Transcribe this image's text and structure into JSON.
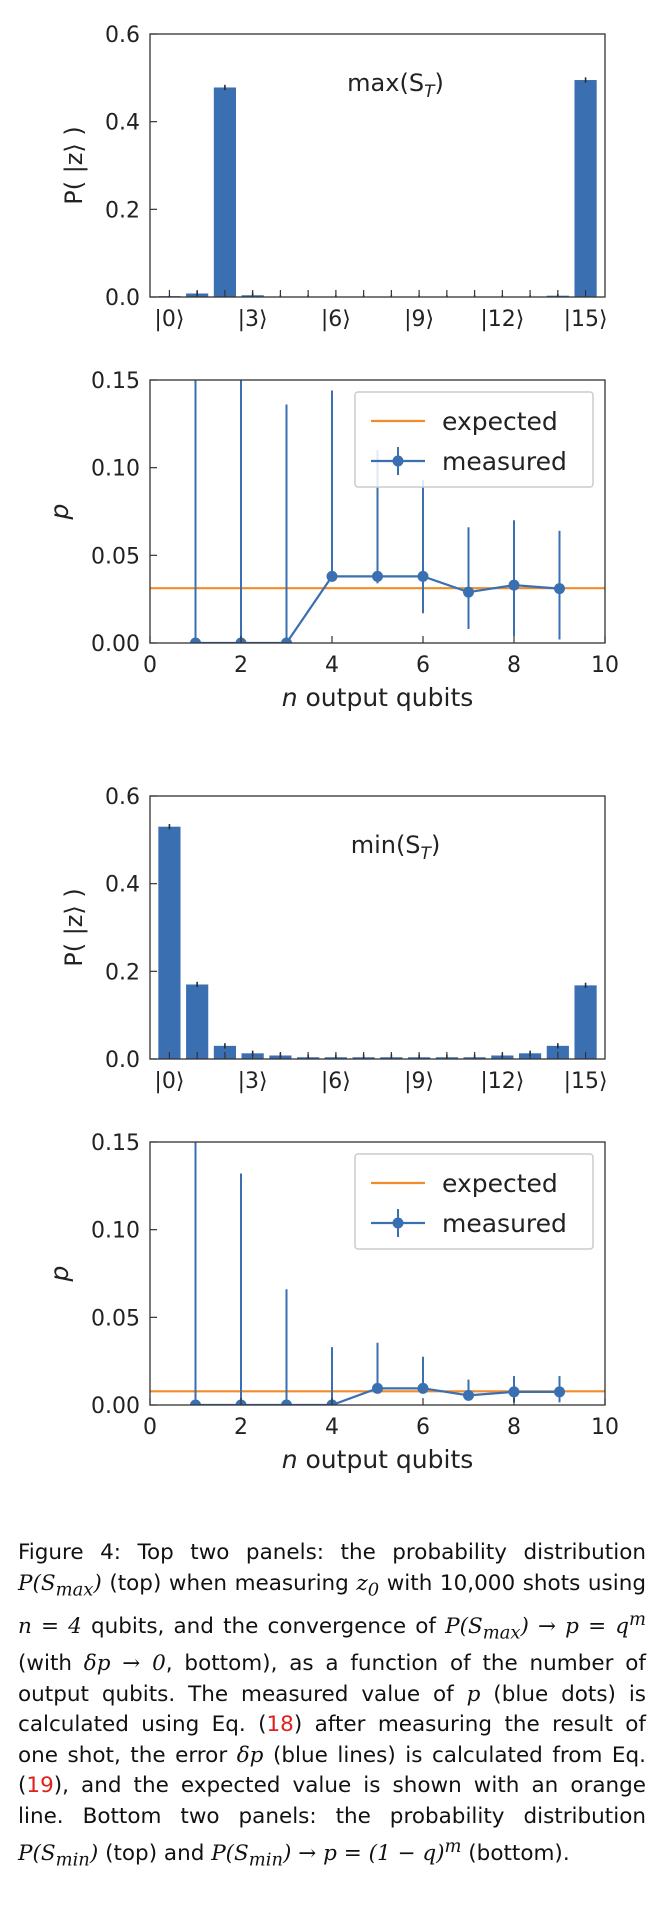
{
  "chart_data": [
    {
      "type": "bar",
      "annotation": "max(S",
      "annotation_sub": "T",
      "annotation_close": ")",
      "ylabel": "P( |z⟩ )",
      "ylim": [
        0,
        0.6
      ],
      "yticks": [
        "0.0",
        "0.2",
        "0.4",
        "0.6"
      ],
      "ytick_values": [
        0,
        0.2,
        0.4,
        0.6
      ],
      "xticks": [
        "|0⟩",
        "|3⟩",
        "|6⟩",
        "|9⟩",
        "|12⟩",
        "|15⟩"
      ],
      "xtick_positions": [
        0,
        3,
        6,
        9,
        12,
        15
      ],
      "categories": [
        0,
        1,
        2,
        3,
        4,
        5,
        6,
        7,
        8,
        9,
        10,
        11,
        12,
        13,
        14,
        15
      ],
      "values": [
        0.002,
        0.008,
        0.478,
        0.004,
        0.001,
        0.001,
        0.001,
        0.001,
        0.001,
        0.001,
        0.001,
        0.001,
        0.001,
        0.001,
        0.003,
        0.495
      ],
      "errors": [
        0.001,
        0.006,
        0.006,
        0.006,
        0.003,
        0.003,
        0.003,
        0.003,
        0.003,
        0.003,
        0.003,
        0.003,
        0.003,
        0.003,
        0.004,
        0.006
      ],
      "color": "#3a70b2"
    },
    {
      "type": "line",
      "xlabel": "n",
      "xlabel_rest": " output qubits",
      "ylabel": "p",
      "xlim": [
        0,
        10
      ],
      "ylim": [
        0,
        0.15
      ],
      "xticks": [
        "0",
        "2",
        "4",
        "6",
        "8",
        "10"
      ],
      "xtick_values": [
        0,
        2,
        4,
        6,
        8,
        10
      ],
      "yticks": [
        "0.00",
        "0.05",
        "0.10",
        "0.15"
      ],
      "ytick_values": [
        0,
        0.05,
        0.1,
        0.15
      ],
      "x": [
        1,
        2,
        3,
        4,
        5,
        6,
        7,
        8,
        9
      ],
      "series": [
        {
          "name": "measured",
          "values": [
            0,
            0,
            0,
            0.038,
            0.038,
            0.038,
            0.029,
            0.033,
            0.031
          ],
          "err_up": [
            0.16,
            0.16,
            0.136,
            0.106,
            0.072,
            0.055,
            0.037,
            0.037,
            0.033
          ],
          "err_low": [
            0,
            0,
            0,
            0,
            0.004,
            0.021,
            0.021,
            0.029,
            0.029
          ],
          "color": "#3a70b2"
        },
        {
          "name": "expected",
          "constant": 0.03125,
          "color": "#f28c28"
        }
      ],
      "legend": "top-right"
    },
    {
      "type": "bar",
      "annotation": "min(S",
      "annotation_sub": "T",
      "annotation_close": ")",
      "ylabel": "P( |z⟩ )",
      "ylim": [
        0,
        0.6
      ],
      "yticks": [
        "0.0",
        "0.2",
        "0.4",
        "0.6"
      ],
      "ytick_values": [
        0,
        0.2,
        0.4,
        0.6
      ],
      "xticks": [
        "|0⟩",
        "|3⟩",
        "|6⟩",
        "|9⟩",
        "|12⟩",
        "|15⟩"
      ],
      "xtick_positions": [
        0,
        3,
        6,
        9,
        12,
        15
      ],
      "categories": [
        0,
        1,
        2,
        3,
        4,
        5,
        6,
        7,
        8,
        9,
        10,
        11,
        12,
        13,
        14,
        15
      ],
      "values": [
        0.53,
        0.17,
        0.03,
        0.013,
        0.008,
        0.004,
        0.004,
        0.004,
        0.004,
        0.004,
        0.004,
        0.004,
        0.008,
        0.013,
        0.03,
        0.168
      ],
      "errors": [
        0.006,
        0.006,
        0.006,
        0.006,
        0.006,
        0.006,
        0.006,
        0.006,
        0.006,
        0.006,
        0.006,
        0.006,
        0.006,
        0.006,
        0.006,
        0.006
      ],
      "color": "#3a70b2"
    },
    {
      "type": "line",
      "xlabel": "n",
      "xlabel_rest": " output qubits",
      "ylabel": "p",
      "xlim": [
        0,
        10
      ],
      "ylim": [
        0,
        0.15
      ],
      "xticks": [
        "0",
        "2",
        "4",
        "6",
        "8",
        "10"
      ],
      "xtick_values": [
        0,
        2,
        4,
        6,
        8,
        10
      ],
      "yticks": [
        "0.00",
        "0.05",
        "0.10",
        "0.15"
      ],
      "ytick_values": [
        0,
        0.05,
        0.1,
        0.15
      ],
      "x": [
        1,
        2,
        3,
        4,
        5,
        6,
        7,
        8,
        9
      ],
      "series": [
        {
          "name": "measured",
          "values": [
            0,
            0,
            0,
            0,
            0.0095,
            0.0095,
            0.0055,
            0.0075,
            0.0075
          ],
          "err_up": [
            0.16,
            0.132,
            0.066,
            0.033,
            0.026,
            0.018,
            0.009,
            0.009,
            0.009
          ],
          "err_low": [
            0,
            0,
            0,
            0,
            0,
            0.003,
            0.002,
            0.006,
            0.006
          ],
          "color": "#3a70b2"
        },
        {
          "name": "expected",
          "constant": 0.0078,
          "color": "#f28c28"
        }
      ],
      "legend": "top-right"
    }
  ],
  "caption": {
    "p1": "Figure 4: Top two panels: the probability distribution ",
    "m1": "P(S",
    "m1sub": "max",
    "m1c": ")",
    "p2": " (top) when measuring ",
    "m2": "z",
    "m2sub": "0",
    "p3": " with 10,000 shots using ",
    "m3": "n = 4",
    "p4": " qubits, and the convergence of ",
    "m4": "P(S",
    "m4sub": "max",
    "m4c": ") → p = q",
    "m4sup": "m",
    "p5": " (with ",
    "m5": "δp → 0",
    "p6": ", bottom), as a function of the number of output qubits. The measured value of ",
    "m6": "p",
    "p7": " (blue dots) is calculated using Eq. (",
    "r1": "18",
    "p8": ") after measuring the result of one shot, the error ",
    "m7": "δp",
    "p9": " (blue lines) is calculated from Eq. (",
    "r2": "19",
    "p10": "), and the expected value is shown with an orange line. Bottom two panels: the probability distribution ",
    "m8": "P(S",
    "m8sub": "min",
    "m8c": ")",
    "p11": " (top) and ",
    "m9": "P(S",
    "m9sub": "min",
    "m9c": ") → p = (1 − q)",
    "m9sup": "m",
    "p12": " (bottom)."
  }
}
